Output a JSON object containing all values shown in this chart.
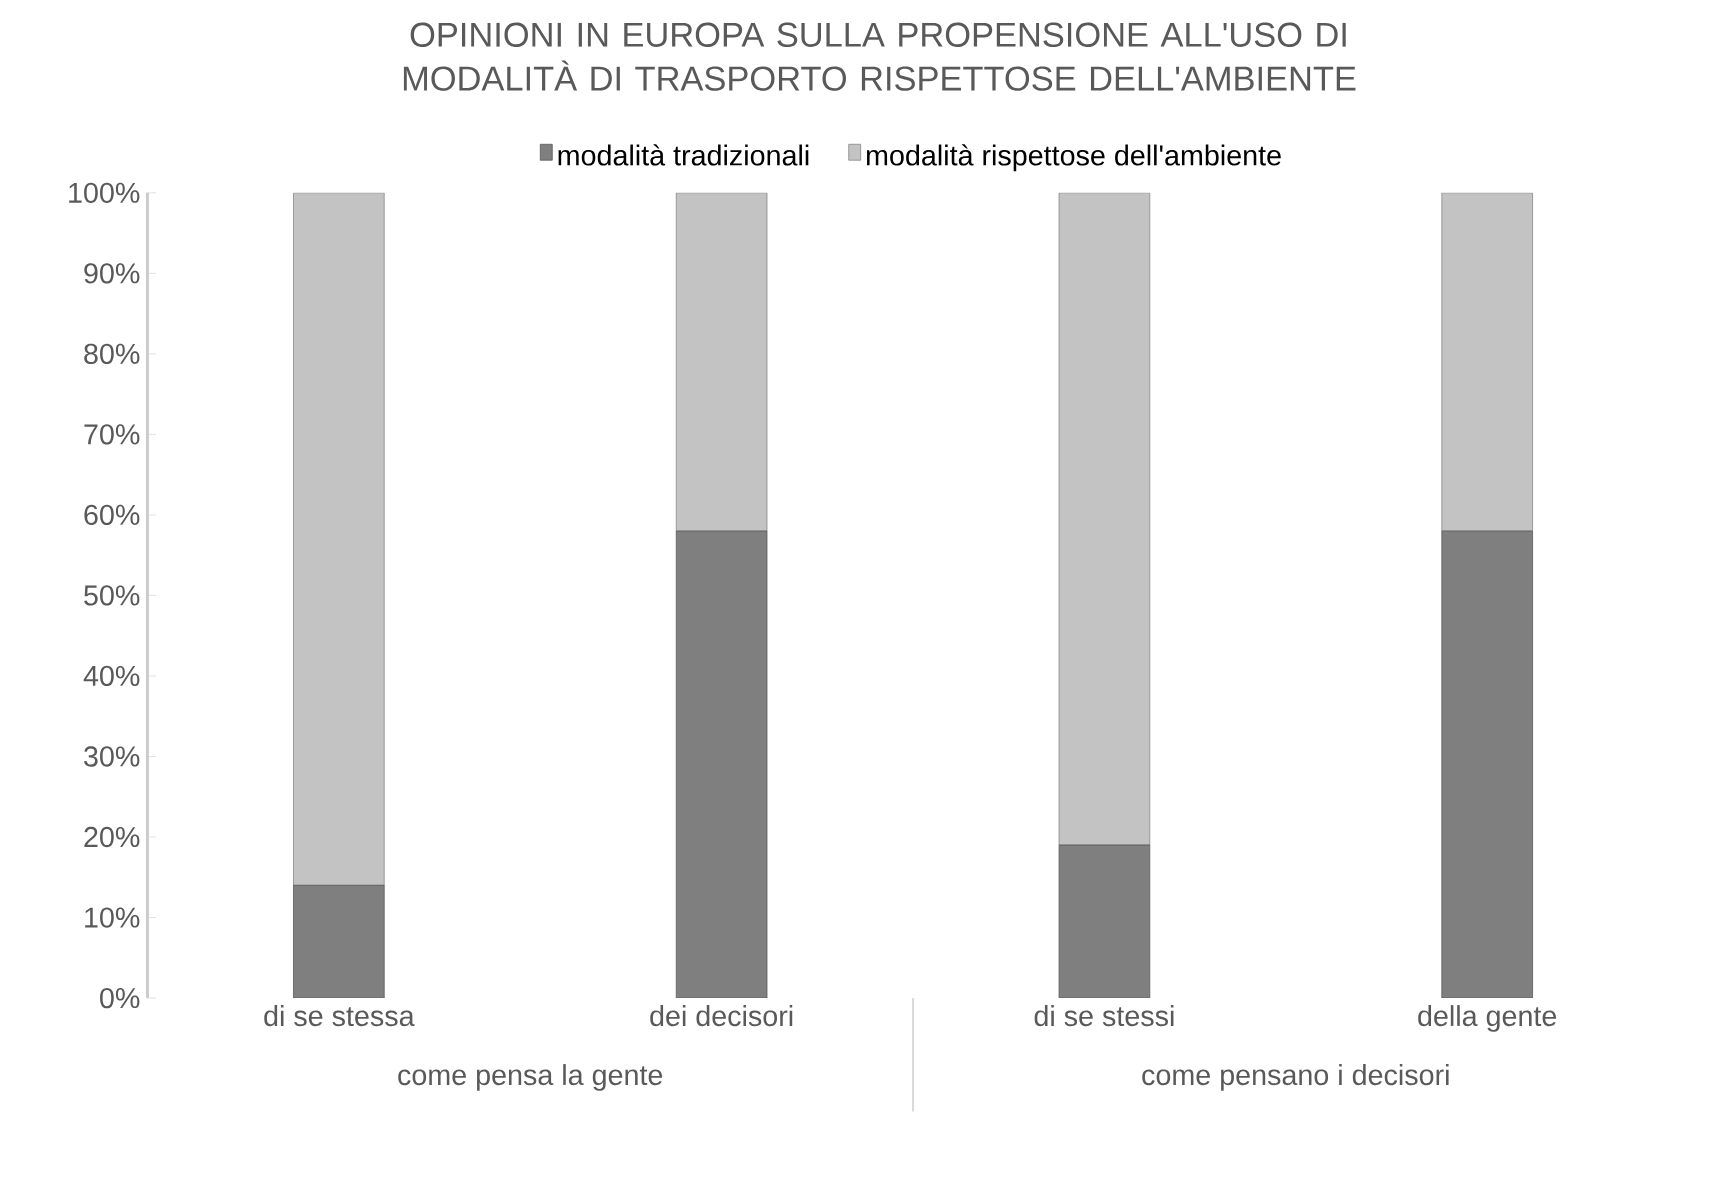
{
  "chart_data": {
    "type": "bar",
    "stacked": true,
    "title": "OPINIONI IN EUROPA SULLA PROPENSIONE ALL'USO DI MODALITÀ DI TRASPORTO RISPETTOSE DELL'AMBIENTE",
    "categories": [
      "di se stessa",
      "dei decisori",
      "di se stessi",
      "della gente"
    ],
    "series": [
      {
        "name": "modalità tradizionali",
        "color": "#7f7f7f",
        "values": [
          14,
          58,
          19,
          58
        ]
      },
      {
        "name": "modalità rispettose dell'ambiente",
        "color": "#c3c3c3",
        "values": [
          86,
          42,
          81,
          42
        ]
      }
    ],
    "ylim": [
      0,
      100
    ],
    "yticks": [
      {
        "value": 0,
        "label": "0%"
      },
      {
        "value": 10,
        "label": "10%"
      },
      {
        "value": 20,
        "label": "20%"
      },
      {
        "value": 30,
        "label": "30%"
      },
      {
        "value": 40,
        "label": "40%"
      },
      {
        "value": 50,
        "label": "50%"
      },
      {
        "value": 60,
        "label": "60%"
      },
      {
        "value": 70,
        "label": "70%"
      },
      {
        "value": 80,
        "label": "80%"
      },
      {
        "value": 90,
        "label": "90%"
      },
      {
        "value": 100,
        "label": "100%"
      }
    ],
    "legend": "top",
    "grid": false,
    "annotations": [
      "come pensa la gente",
      "come pensano i decisori"
    ]
  }
}
